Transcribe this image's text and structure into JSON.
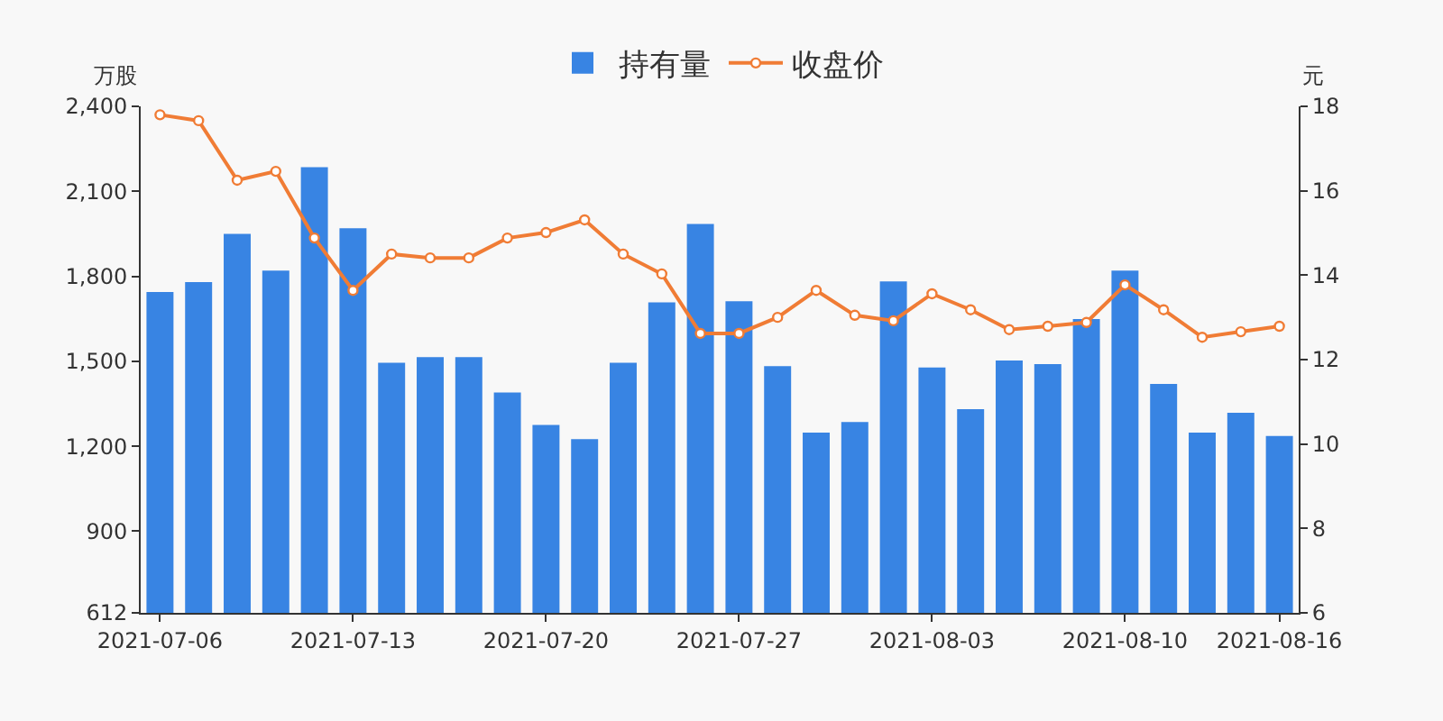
{
  "chart_data": {
    "type": "bar",
    "ylabel": "万股",
    "y2label": "元",
    "categories": [
      "2021-07-06",
      null,
      null,
      null,
      null,
      "2021-07-13",
      null,
      null,
      null,
      null,
      "2021-07-20",
      null,
      null,
      null,
      null,
      "2021-07-27",
      null,
      null,
      null,
      null,
      "2021-08-03",
      null,
      null,
      null,
      null,
      "2021-08-10",
      null,
      null,
      null,
      "2021-08-16"
    ],
    "series": [
      {
        "name": "持有量",
        "color": "#3884e3",
        "values": [
          1745,
          1780,
          1950,
          1820,
          2185,
          1970,
          1495,
          1515,
          1515,
          1390,
          1275,
          1225,
          1495,
          1708,
          1985,
          1712,
          1483,
          1248,
          1286,
          1782,
          1478,
          1331,
          1503,
          1490,
          1649,
          1820,
          1420,
          1248,
          1318,
          1236
        ]
      },
      {
        "name": "收盘价",
        "type": "line",
        "axis": "y2",
        "color": "#f07c35",
        "marker": "circle",
        "line_style": "solid",
        "values": [
          17.8,
          17.66,
          16.25,
          16.46,
          14.88,
          13.64,
          14.5,
          14.41,
          14.41,
          14.88,
          15.01,
          15.31,
          14.5,
          14.03,
          12.62,
          12.62,
          13.0,
          13.64,
          13.05,
          12.92,
          13.56,
          13.18,
          12.71,
          12.79,
          12.88,
          13.77,
          13.18,
          12.53,
          12.66,
          12.79
        ]
      }
    ],
    "ylim": [
      612,
      2400
    ],
    "yticks": [
      612,
      900,
      {
        "value": 1200,
        "label": "1,200"
      },
      {
        "value": 1500,
        "label": "1,500"
      },
      {
        "value": 1800,
        "label": "1,800"
      },
      {
        "value": 2100,
        "label": "2,100"
      },
      {
        "value": 2400,
        "label": "2,400"
      }
    ],
    "y2lim": [
      6,
      18
    ],
    "y2ticks": [
      6,
      8,
      10,
      12,
      14,
      16,
      18
    ],
    "legend": "top"
  }
}
